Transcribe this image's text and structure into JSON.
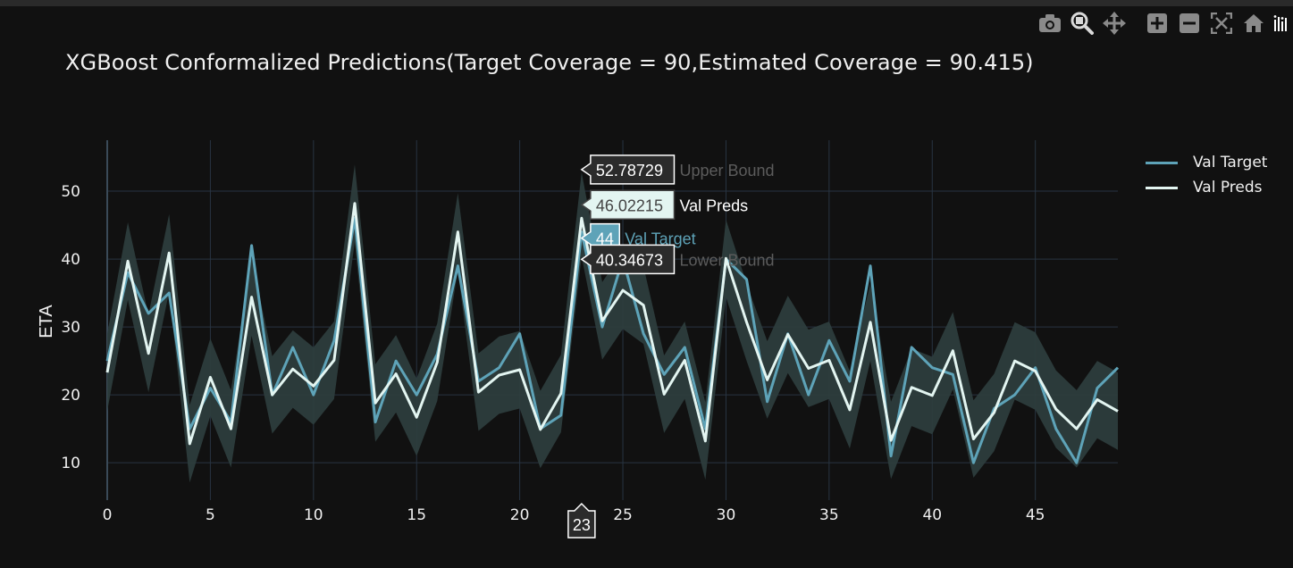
{
  "modebar": {
    "buttons": [
      "camera-icon",
      "zoom-icon",
      "pan-icon",
      "zoom-in-icon",
      "zoom-out-icon",
      "autoscale-icon",
      "reset-axes-icon"
    ],
    "logo": "plotly-logo-icon"
  },
  "colors": {
    "background": "#111111",
    "grid": "#283442",
    "band": "#2d3d3d",
    "target": "#5ea3b8",
    "preds": "#e3f5f1",
    "text": "#f0f0f0",
    "hover_bound": "#5c5c5c"
  },
  "chart_data": {
    "type": "line",
    "title": "XGBoost Conformalized Predictions(Target Coverage = 90,Estimated Coverage  = 90.415)",
    "xlabel": "",
    "ylabel": "ETA",
    "xlim": [
      0,
      49
    ],
    "ylim": [
      4.5,
      57.5
    ],
    "grid": true,
    "legend_position": "top-right",
    "x_ticks": [
      0,
      5,
      10,
      15,
      20,
      25,
      30,
      35,
      40,
      45
    ],
    "y_ticks": [
      10,
      20,
      30,
      40,
      50
    ],
    "x": [
      0,
      1,
      2,
      3,
      4,
      5,
      6,
      7,
      8,
      9,
      10,
      11,
      12,
      13,
      14,
      15,
      16,
      17,
      18,
      19,
      20,
      21,
      22,
      23,
      24,
      25,
      26,
      27,
      28,
      29,
      30,
      31,
      32,
      33,
      34,
      35,
      36,
      37,
      38,
      39,
      40,
      41,
      42,
      43,
      44,
      45,
      46,
      47,
      48,
      49
    ],
    "series": [
      {
        "name": "Val Target",
        "color": "#5ea3b8",
        "values": [
          25,
          38,
          32,
          35,
          15,
          21,
          16,
          42,
          20,
          27,
          20,
          28,
          46,
          16,
          25,
          20,
          26,
          39,
          22,
          24,
          29,
          15,
          17,
          44,
          30,
          40,
          29,
          23,
          27,
          15,
          40,
          37,
          19,
          29,
          20,
          28,
          22,
          39,
          11,
          27,
          24,
          23,
          10,
          18,
          20,
          24,
          15,
          10,
          21,
          24
        ]
      },
      {
        "name": "Val Preds",
        "color": "#e3f5f1",
        "values": [
          23.3,
          39.7,
          26.1,
          40.9,
          12.8,
          22.6,
          15,
          34.4,
          20,
          23.8,
          21.3,
          25.1,
          48.2,
          18.8,
          23.1,
          16.7,
          24.8,
          44,
          20.4,
          22.9,
          23.7,
          14.9,
          20.2,
          46.02,
          30.9,
          35.4,
          33.2,
          20.1,
          25.1,
          13.2,
          40.1,
          30.7,
          22.2,
          28.9,
          23.9,
          25.1,
          17.8,
          30.7,
          13.3,
          21.1,
          19.9,
          26.5,
          13.5,
          17.4,
          25,
          23.5,
          17.9,
          15,
          19.3,
          17.6
        ]
      },
      {
        "name": "Upper Bound",
        "values": [
          29,
          45.4,
          31.8,
          46.6,
          18.5,
          28.3,
          20.7,
          40.1,
          25.7,
          29.5,
          27,
          30.8,
          53.9,
          24.5,
          28.8,
          22.4,
          30.5,
          49.7,
          26.1,
          28.6,
          29.4,
          20.6,
          25.9,
          52.79,
          36.6,
          41.1,
          38.9,
          25.8,
          30.8,
          18.9,
          45.8,
          36.4,
          27.9,
          34.6,
          29.6,
          30.8,
          23.5,
          36.4,
          19,
          26.8,
          25.6,
          32.2,
          19.2,
          23.1,
          30.7,
          29.2,
          23.6,
          20.7,
          25,
          23.3
        ]
      },
      {
        "name": "Lower Bound",
        "values": [
          17.6,
          34,
          20.4,
          35.2,
          7.1,
          16.9,
          9.3,
          28.7,
          14.3,
          18.1,
          15.6,
          19.4,
          42.5,
          13.1,
          17.4,
          11,
          19.1,
          38.3,
          14.7,
          17.2,
          18,
          9.2,
          14.5,
          40.35,
          25.2,
          29.7,
          27.5,
          14.4,
          19.4,
          7.5,
          34.4,
          25,
          16.5,
          23.2,
          18.2,
          19.4,
          12.1,
          25,
          7.6,
          15.4,
          14.2,
          20.8,
          7.8,
          11.7,
          19.3,
          17.8,
          12.2,
          9.3,
          13.6,
          11.9
        ]
      }
    ],
    "hover": {
      "x_label": "23",
      "upper_value": "52.78729",
      "upper_name": "Upper Bound",
      "preds_value": "46.02215",
      "preds_name": "Val Preds",
      "target_value": "44",
      "target_name": "Val Target",
      "lower_value": "40.34673",
      "lower_name": "Lower Bound"
    }
  }
}
